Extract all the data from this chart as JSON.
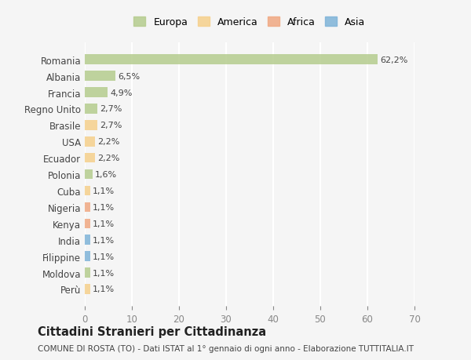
{
  "countries": [
    "Romania",
    "Albania",
    "Francia",
    "Regno Unito",
    "Brasile",
    "USA",
    "Ecuador",
    "Polonia",
    "Cuba",
    "Nigeria",
    "Kenya",
    "India",
    "Filippine",
    "Moldova",
    "Perù"
  ],
  "values": [
    62.2,
    6.5,
    4.9,
    2.7,
    2.7,
    2.2,
    2.2,
    1.6,
    1.1,
    1.1,
    1.1,
    1.1,
    1.1,
    1.1,
    1.1
  ],
  "labels": [
    "62,2%",
    "6,5%",
    "4,9%",
    "2,7%",
    "2,7%",
    "2,2%",
    "2,2%",
    "1,6%",
    "1,1%",
    "1,1%",
    "1,1%",
    "1,1%",
    "1,1%",
    "1,1%",
    "1,1%"
  ],
  "continents": [
    "Europa",
    "Europa",
    "Europa",
    "Europa",
    "America",
    "America",
    "America",
    "Europa",
    "America",
    "Africa",
    "Africa",
    "Asia",
    "Asia",
    "Europa",
    "America"
  ],
  "colors": {
    "Europa": "#b5cc8e",
    "America": "#f5d08b",
    "Africa": "#f0a882",
    "Asia": "#7eb3d8"
  },
  "legend_order": [
    "Europa",
    "America",
    "Africa",
    "Asia"
  ],
  "legend_colors": [
    "#b5cc8e",
    "#f5d08b",
    "#f0a882",
    "#7eb3d8"
  ],
  "title": "Cittadini Stranieri per Cittadinanza",
  "subtitle": "COMUNE DI ROSTA (TO) - Dati ISTAT al 1° gennaio di ogni anno - Elaborazione TUTTITALIA.IT",
  "xlim": [
    0,
    70
  ],
  "xticks": [
    0,
    10,
    20,
    30,
    40,
    50,
    60,
    70
  ],
  "bg_color": "#f5f5f5",
  "grid_color": "#ffffff",
  "bar_alpha": 0.85
}
